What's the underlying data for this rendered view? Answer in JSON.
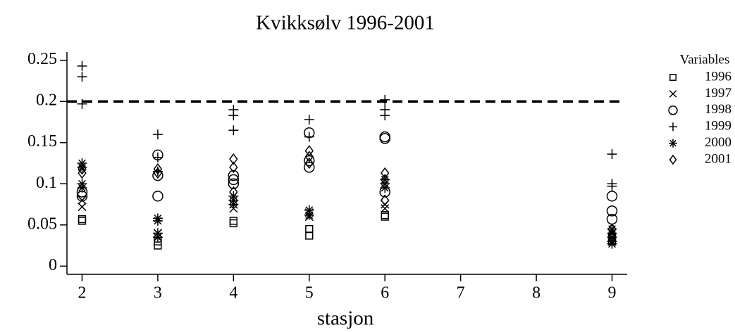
{
  "chart_data": {
    "type": "scatter",
    "title": "Kvikksølv 1996-2001",
    "x_label": "stasjon",
    "legend_title": "Variables",
    "legend": "right",
    "hline": 0.2,
    "xlim": [
      1.8,
      9.2
    ],
    "xticks": [
      2,
      3,
      4,
      5,
      6,
      7,
      8,
      9
    ],
    "ylim": [
      -0.01,
      0.26
    ],
    "yticks": [
      0,
      0.05,
      0.1,
      0.15,
      0.2,
      0.25
    ],
    "series": [
      {
        "name": "1996",
        "marker": "square",
        "color": "#000000",
        "x": [
          2,
          2,
          3,
          3,
          4,
          4,
          5,
          5,
          6,
          6,
          9,
          9
        ],
        "values": [
          0.055,
          0.057,
          0.025,
          0.03,
          0.052,
          0.055,
          0.037,
          0.045,
          0.06,
          0.062,
          0.03,
          0.035
        ]
      },
      {
        "name": "1997",
        "marker": "x",
        "color": "#000000",
        "x": [
          2,
          2,
          3,
          3,
          4,
          4,
          5,
          5,
          6,
          6,
          9,
          9
        ],
        "values": [
          0.072,
          0.08,
          0.035,
          0.04,
          0.07,
          0.075,
          0.06,
          0.065,
          0.07,
          0.075,
          0.03,
          0.04
        ]
      },
      {
        "name": "1998",
        "marker": "circle",
        "color": "#000000",
        "x": [
          2,
          2,
          3,
          3,
          3,
          4,
          4,
          4,
          5,
          5,
          5,
          6,
          6,
          6,
          9,
          9,
          9
        ],
        "values": [
          0.085,
          0.09,
          0.135,
          0.11,
          0.085,
          0.11,
          0.105,
          0.1,
          0.162,
          0.12,
          0.128,
          0.157,
          0.155,
          0.09,
          0.085,
          0.067,
          0.057
        ]
      },
      {
        "name": "1999",
        "marker": "plus",
        "color": "#000000",
        "x": [
          2,
          2,
          2,
          3,
          3,
          3,
          4,
          4,
          4,
          5,
          5,
          6,
          6,
          6,
          9,
          9,
          9
        ],
        "values": [
          0.243,
          0.23,
          0.197,
          0.16,
          0.132,
          0.115,
          0.19,
          0.183,
          0.165,
          0.178,
          0.157,
          0.202,
          0.19,
          0.183,
          0.136,
          0.1,
          0.097
        ]
      },
      {
        "name": "2000",
        "marker": "star",
        "color": "#000000",
        "x": [
          2,
          2,
          2,
          2,
          3,
          3,
          3,
          3,
          4,
          4,
          4,
          5,
          5,
          6,
          6,
          6,
          9,
          9,
          9,
          9,
          9
        ],
        "values": [
          0.125,
          0.12,
          0.1,
          0.095,
          0.058,
          0.055,
          0.04,
          0.035,
          0.085,
          0.08,
          0.075,
          0.068,
          0.062,
          0.105,
          0.1,
          0.095,
          0.045,
          0.04,
          0.035,
          0.03,
          0.027
        ]
      },
      {
        "name": "2001",
        "marker": "diamond",
        "color": "#000000",
        "x": [
          2,
          2,
          3,
          3,
          4,
          4,
          4,
          5,
          5,
          5,
          6,
          6,
          6,
          9,
          9
        ],
        "values": [
          0.118,
          0.113,
          0.118,
          0.113,
          0.13,
          0.12,
          0.09,
          0.14,
          0.133,
          0.125,
          0.113,
          0.105,
          0.08,
          0.045,
          0.038
        ]
      }
    ]
  }
}
